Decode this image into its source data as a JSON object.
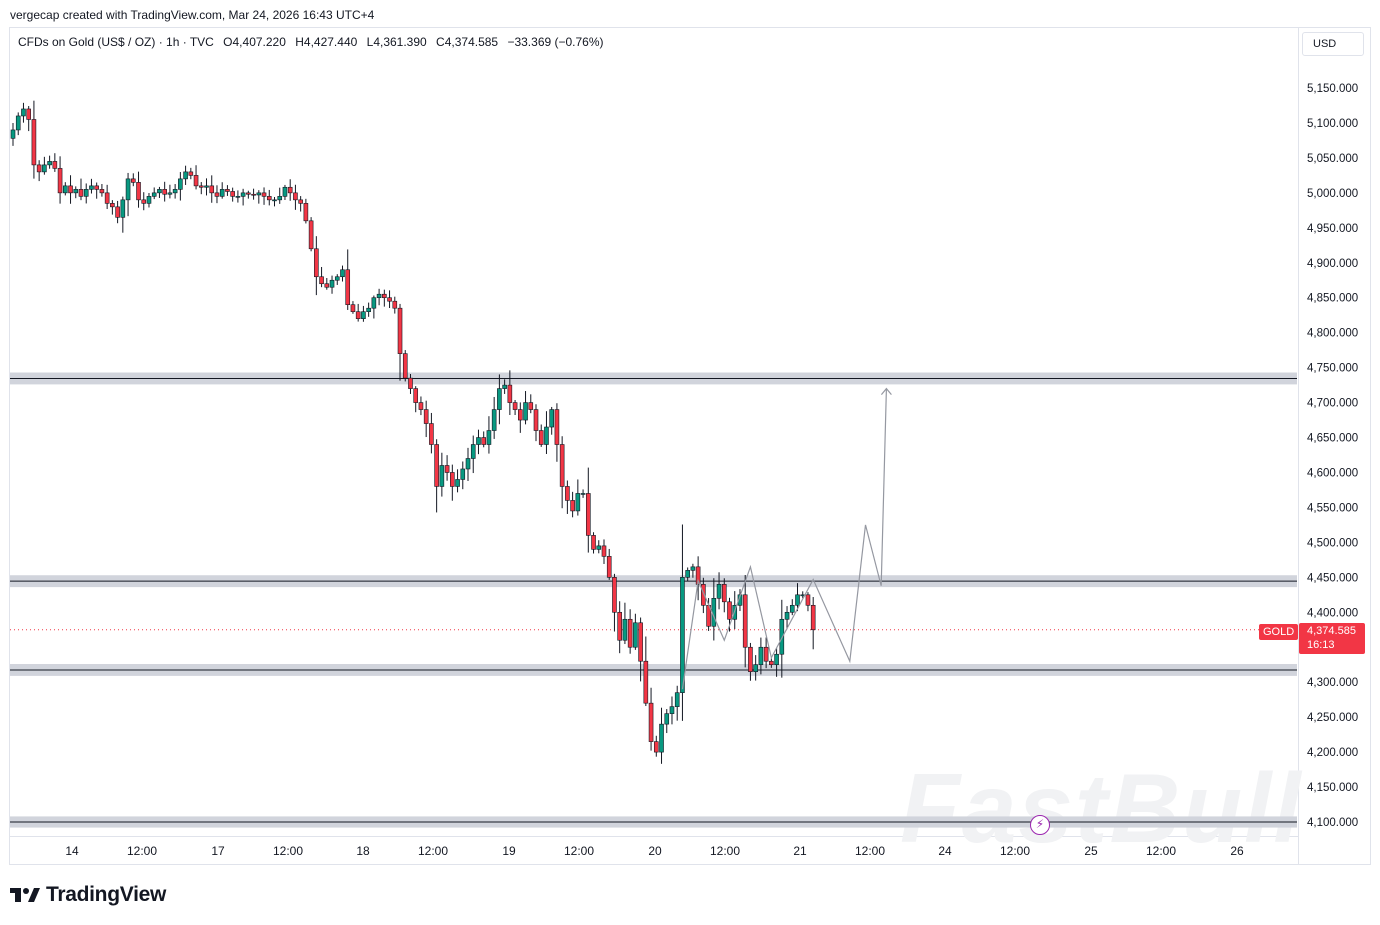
{
  "header": {
    "credit": "vergecap created with TradingView.com, Mar 24, 2026 16:43 UTC+4"
  },
  "legend": {
    "symbol": "CFDs on Gold (US$ / OZ) · 1h · TVC",
    "open": "O4,407.220",
    "high": "H4,427.440",
    "low": "L4,361.390",
    "close": "C4,374.585",
    "change": "−33.369 (−0.76%)"
  },
  "price_axis": {
    "currency": "USD",
    "ticks": [
      "5,150.000",
      "5,100.000",
      "5,050.000",
      "5,000.000",
      "4,950.000",
      "4,900.000",
      "4,850.000",
      "4,800.000",
      "4,750.000",
      "4,700.000",
      "4,650.000",
      "4,600.000",
      "4,550.000",
      "4,500.000",
      "4,450.000",
      "4,400.000",
      "4,300.000",
      "4,250.000",
      "4,200.000",
      "4,150.000",
      "4,100.000"
    ]
  },
  "time_axis": {
    "ticks": [
      "14",
      "12:00",
      "17",
      "12:00",
      "18",
      "12:00",
      "19",
      "12:00",
      "20",
      "12:00",
      "21",
      "12:00",
      "24",
      "12:00",
      "25",
      "12:00",
      "26"
    ]
  },
  "last_price": {
    "symbol_tag": "GOLD",
    "price": "4,374.585",
    "countdown": "16:13"
  },
  "logo": {
    "text": "TradingView"
  },
  "watermark": {
    "text": "FastBull"
  },
  "colors": {
    "up": "#089981",
    "down": "#f23645",
    "zone": "#d1d4dc",
    "projection": "#9598a1"
  },
  "chart_data": {
    "type": "candlestick",
    "title": "CFDs on Gold (US$ / OZ)",
    "timeframe": "1h",
    "ylim": [
      4080,
      5185
    ],
    "zones": [
      {
        "low": 4726,
        "high": 4743
      },
      {
        "low": 4436,
        "high": 4453
      },
      {
        "low": 4309,
        "high": 4326
      },
      {
        "low": 4092,
        "high": 4108
      }
    ],
    "closes": [
      5090,
      5110,
      5120,
      5105,
      5040,
      5030,
      5040,
      5045,
      5035,
      5000,
      5010,
      5000,
      5005,
      4995,
      5005,
      5010,
      5005,
      5000,
      4985,
      4980,
      4965,
      4990,
      5020,
      5015,
      4990,
      4985,
      4995,
      5000,
      5005,
      4998,
      5000,
      5005,
      5020,
      5030,
      5025,
      5010,
      5008,
      5010,
      5000,
      4995,
      5005,
      5002,
      4995,
      4995,
      5000,
      4998,
      4997,
      5000,
      4995,
      4990,
      4990,
      4995,
      5008,
      5000,
      4990,
      4985,
      4960,
      4920,
      4880,
      4870,
      4865,
      4875,
      4880,
      4890,
      4840,
      4830,
      4820,
      4830,
      4835,
      4850,
      4855,
      4850,
      4845,
      4835,
      4770,
      4735,
      4720,
      4700,
      4690,
      4670,
      4640,
      4580,
      4610,
      4600,
      4580,
      4590,
      4605,
      4620,
      4640,
      4650,
      4640,
      4660,
      4690,
      4720,
      4725,
      4700,
      4690,
      4675,
      4700,
      4690,
      4660,
      4640,
      4665,
      4690,
      4640,
      4580,
      4560,
      4545,
      4570,
      4570,
      4510,
      4490,
      4495,
      4480,
      4450,
      4400,
      4360,
      4390,
      4350,
      4385,
      4330,
      4270,
      4215,
      4200,
      4240,
      4255,
      4265,
      4285,
      4450,
      4460,
      4465,
      4440,
      4410,
      4380,
      4420,
      4440,
      4415,
      4390,
      4410,
      4425,
      4350,
      4315,
      4325,
      4350,
      4330,
      4325,
      4340,
      4390,
      4400,
      4410,
      4425,
      4425,
      4410,
      4375
    ],
    "projection_path": [
      {
        "bar": 128,
        "price": 4290
      },
      {
        "bar": 131,
        "price": 4445
      },
      {
        "bar": 136,
        "price": 4360
      },
      {
        "bar": 141,
        "price": 4465
      },
      {
        "bar": 145,
        "price": 4335
      },
      {
        "bar": 153,
        "price": 4447
      },
      {
        "bar": 157,
        "price": 4380
      },
      {
        "bar": 160,
        "price": 4330
      },
      {
        "bar": 163,
        "price": 4525
      },
      {
        "bar": 166,
        "price": 4438
      },
      {
        "bar": 167,
        "price": 4720
      }
    ]
  }
}
